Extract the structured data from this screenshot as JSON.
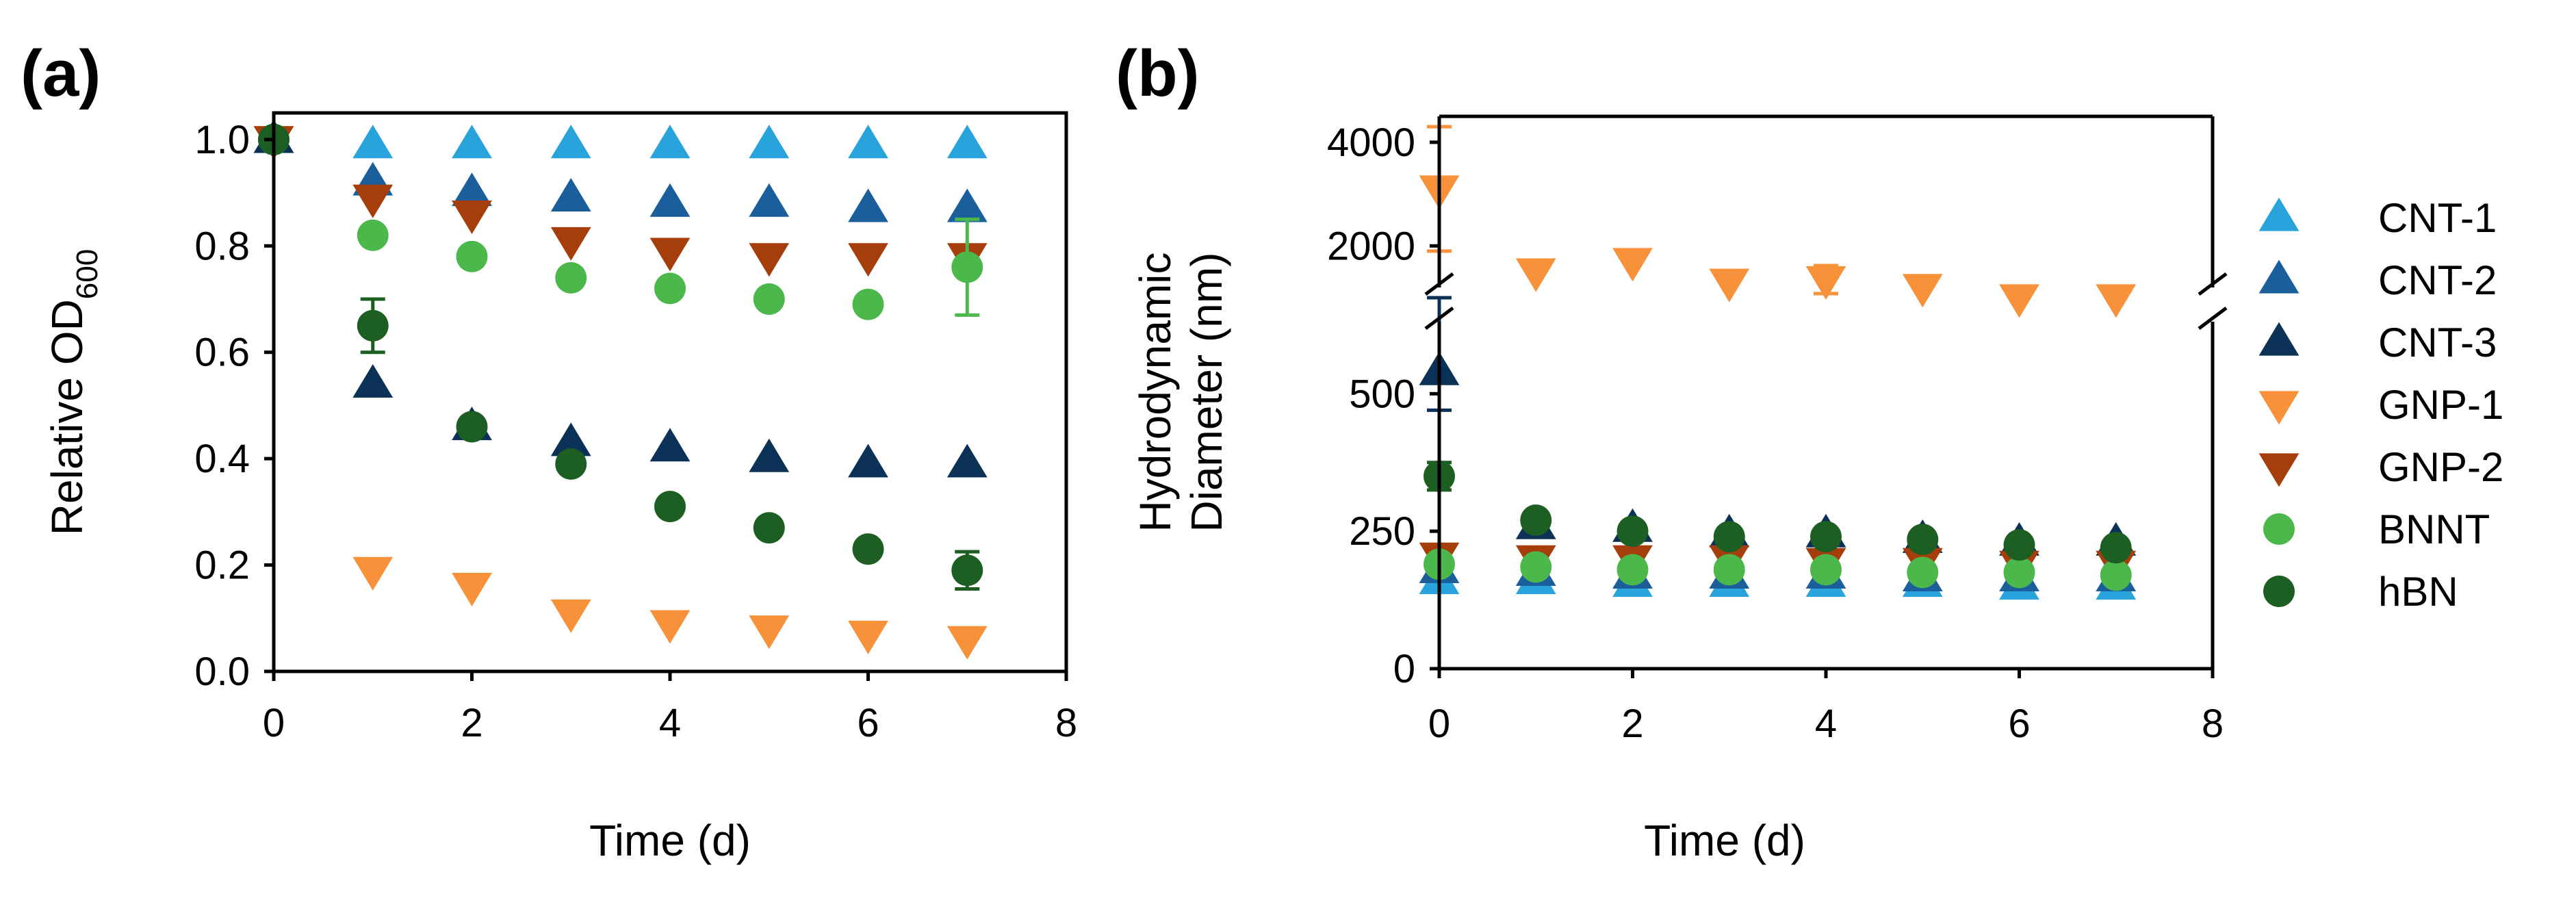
{
  "colors": {
    "CNT-1": "#29a3dc",
    "CNT-2": "#1a5f9c",
    "CNT-3": "#0b3256",
    "GNP-1": "#f7923a",
    "GNP-2": "#a63e0c",
    "BNNT": "#4cb84c",
    "hBN": "#1d5e23"
  },
  "chart_data": [
    {
      "panel": "(a)",
      "type": "scatter",
      "xlabel": "Time (d)",
      "ylabel": "Relative OD",
      "ylabel_sub": "600",
      "xlim": [
        0,
        8
      ],
      "ylim": [
        0,
        1.05
      ],
      "xticks": [
        "0",
        "2",
        "4",
        "6",
        "8"
      ],
      "yticks": [
        "0.0",
        "0.2",
        "0.4",
        "0.6",
        "0.8",
        "1.0"
      ],
      "series": [
        {
          "name": "CNT-1",
          "marker": "triangle-up",
          "x": [
            0,
            1,
            2,
            3,
            4,
            5,
            6,
            7
          ],
          "y": [
            1.0,
            0.99,
            0.99,
            0.99,
            0.99,
            0.99,
            0.99,
            0.99
          ],
          "err": [
            0,
            0,
            0,
            0,
            0,
            0,
            0,
            0
          ]
        },
        {
          "name": "CNT-2",
          "marker": "triangle-up",
          "x": [
            0,
            1,
            2,
            3,
            4,
            5,
            6,
            7
          ],
          "y": [
            1.0,
            0.92,
            0.9,
            0.89,
            0.88,
            0.88,
            0.87,
            0.87
          ],
          "err": [
            0,
            0,
            0,
            0,
            0,
            0,
            0,
            0
          ]
        },
        {
          "name": "CNT-3",
          "marker": "triangle-up",
          "x": [
            0,
            1,
            2,
            3,
            4,
            5,
            6,
            7
          ],
          "y": [
            1.0,
            0.54,
            0.46,
            0.43,
            0.42,
            0.4,
            0.39,
            0.39
          ],
          "err": [
            0,
            0,
            0,
            0,
            0,
            0,
            0,
            0
          ]
        },
        {
          "name": "GNP-1",
          "marker": "triangle-down",
          "x": [
            0,
            1,
            2,
            3,
            4,
            5,
            6,
            7
          ],
          "y": [
            1.0,
            0.19,
            0.16,
            0.11,
            0.09,
            0.08,
            0.07,
            0.06
          ],
          "err": [
            0,
            0,
            0,
            0,
            0,
            0,
            0,
            0
          ]
        },
        {
          "name": "GNP-2",
          "marker": "triangle-down",
          "x": [
            0,
            1,
            2,
            3,
            4,
            5,
            6,
            7
          ],
          "y": [
            1.0,
            0.89,
            0.86,
            0.81,
            0.79,
            0.78,
            0.78,
            0.78
          ],
          "err": [
            0,
            0,
            0,
            0,
            0,
            0,
            0,
            0
          ]
        },
        {
          "name": "BNNT",
          "marker": "circle",
          "x": [
            0,
            1,
            2,
            3,
            4,
            5,
            6,
            7
          ],
          "y": [
            1.0,
            0.82,
            0.78,
            0.74,
            0.72,
            0.7,
            0.69,
            0.76
          ],
          "err": [
            0,
            0,
            0,
            0,
            0,
            0,
            0,
            0.09
          ]
        },
        {
          "name": "hBN",
          "marker": "circle",
          "x": [
            0,
            1,
            2,
            3,
            4,
            5,
            6,
            7
          ],
          "y": [
            1.0,
            0.65,
            0.46,
            0.39,
            0.31,
            0.27,
            0.23,
            0.19
          ],
          "err": [
            0,
            0.05,
            0,
            0,
            0,
            0,
            0,
            0.035
          ]
        }
      ]
    },
    {
      "panel": "(b)",
      "type": "scatter",
      "xlabel": "Time (d)",
      "ylabel": [
        "Hydrodynamic",
        "Diameter (nm)"
      ],
      "xlim": [
        0,
        8
      ],
      "y_axis_break": true,
      "ylim_lower": [
        0,
        600
      ],
      "ylim_upper": [
        1000,
        4500
      ],
      "xticks": [
        "0",
        "2",
        "4",
        "6",
        "8"
      ],
      "yticks": [
        "0",
        "250",
        "500",
        "2000",
        "4000"
      ],
      "legend_position": "right",
      "series": [
        {
          "name": "CNT-1",
          "marker": "triangle-up",
          "x": [
            0,
            1,
            2,
            3,
            4,
            5,
            6,
            7
          ],
          "y": [
            160,
            160,
            155,
            155,
            155,
            155,
            150,
            150
          ],
          "err": [
            0,
            0,
            0,
            0,
            0,
            0,
            0,
            0
          ]
        },
        {
          "name": "CNT-2",
          "marker": "triangle-up",
          "x": [
            0,
            1,
            2,
            3,
            4,
            5,
            6,
            7
          ],
          "y": [
            180,
            175,
            170,
            170,
            170,
            165,
            165,
            165
          ],
          "err": [
            0,
            0,
            0,
            0,
            0,
            0,
            0,
            0
          ]
        },
        {
          "name": "CNT-3",
          "marker": "triangle-up",
          "x": [
            0,
            1,
            2,
            3,
            4,
            5,
            6,
            7
          ],
          "y": [
            540,
            260,
            255,
            245,
            245,
            235,
            230,
            230
          ],
          "err": [
            70,
            0,
            0,
            0,
            0,
            0,
            0,
            0
          ]
        },
        {
          "name": "GNP-1",
          "marker": "triangle-down",
          "x": [
            0,
            1,
            2,
            3,
            4,
            5,
            6,
            7
          ],
          "y": [
            3100,
            1500,
            1700,
            1300,
            1350,
            1200,
            900,
            950
          ],
          "err": [
            1200,
            0,
            0,
            0,
            270,
            0,
            0,
            0
          ]
        },
        {
          "name": "GNP-2",
          "marker": "triangle-down",
          "x": [
            0,
            1,
            2,
            3,
            4,
            5,
            6,
            7
          ],
          "y": [
            205,
            200,
            200,
            200,
            195,
            195,
            190,
            190
          ],
          "err": [
            0,
            0,
            0,
            0,
            0,
            0,
            0,
            0
          ]
        },
        {
          "name": "BNNT",
          "marker": "circle",
          "x": [
            0,
            1,
            2,
            3,
            4,
            5,
            6,
            7
          ],
          "y": [
            190,
            185,
            180,
            180,
            180,
            175,
            175,
            170
          ],
          "err": [
            0,
            0,
            0,
            0,
            0,
            0,
            0,
            0
          ]
        },
        {
          "name": "hBN",
          "marker": "circle",
          "x": [
            0,
            1,
            2,
            3,
            4,
            5,
            6,
            7
          ],
          "y": [
            350,
            270,
            250,
            240,
            240,
            235,
            225,
            220
          ],
          "err": [
            25,
            0,
            0,
            0,
            0,
            0,
            0,
            0
          ]
        }
      ]
    }
  ]
}
